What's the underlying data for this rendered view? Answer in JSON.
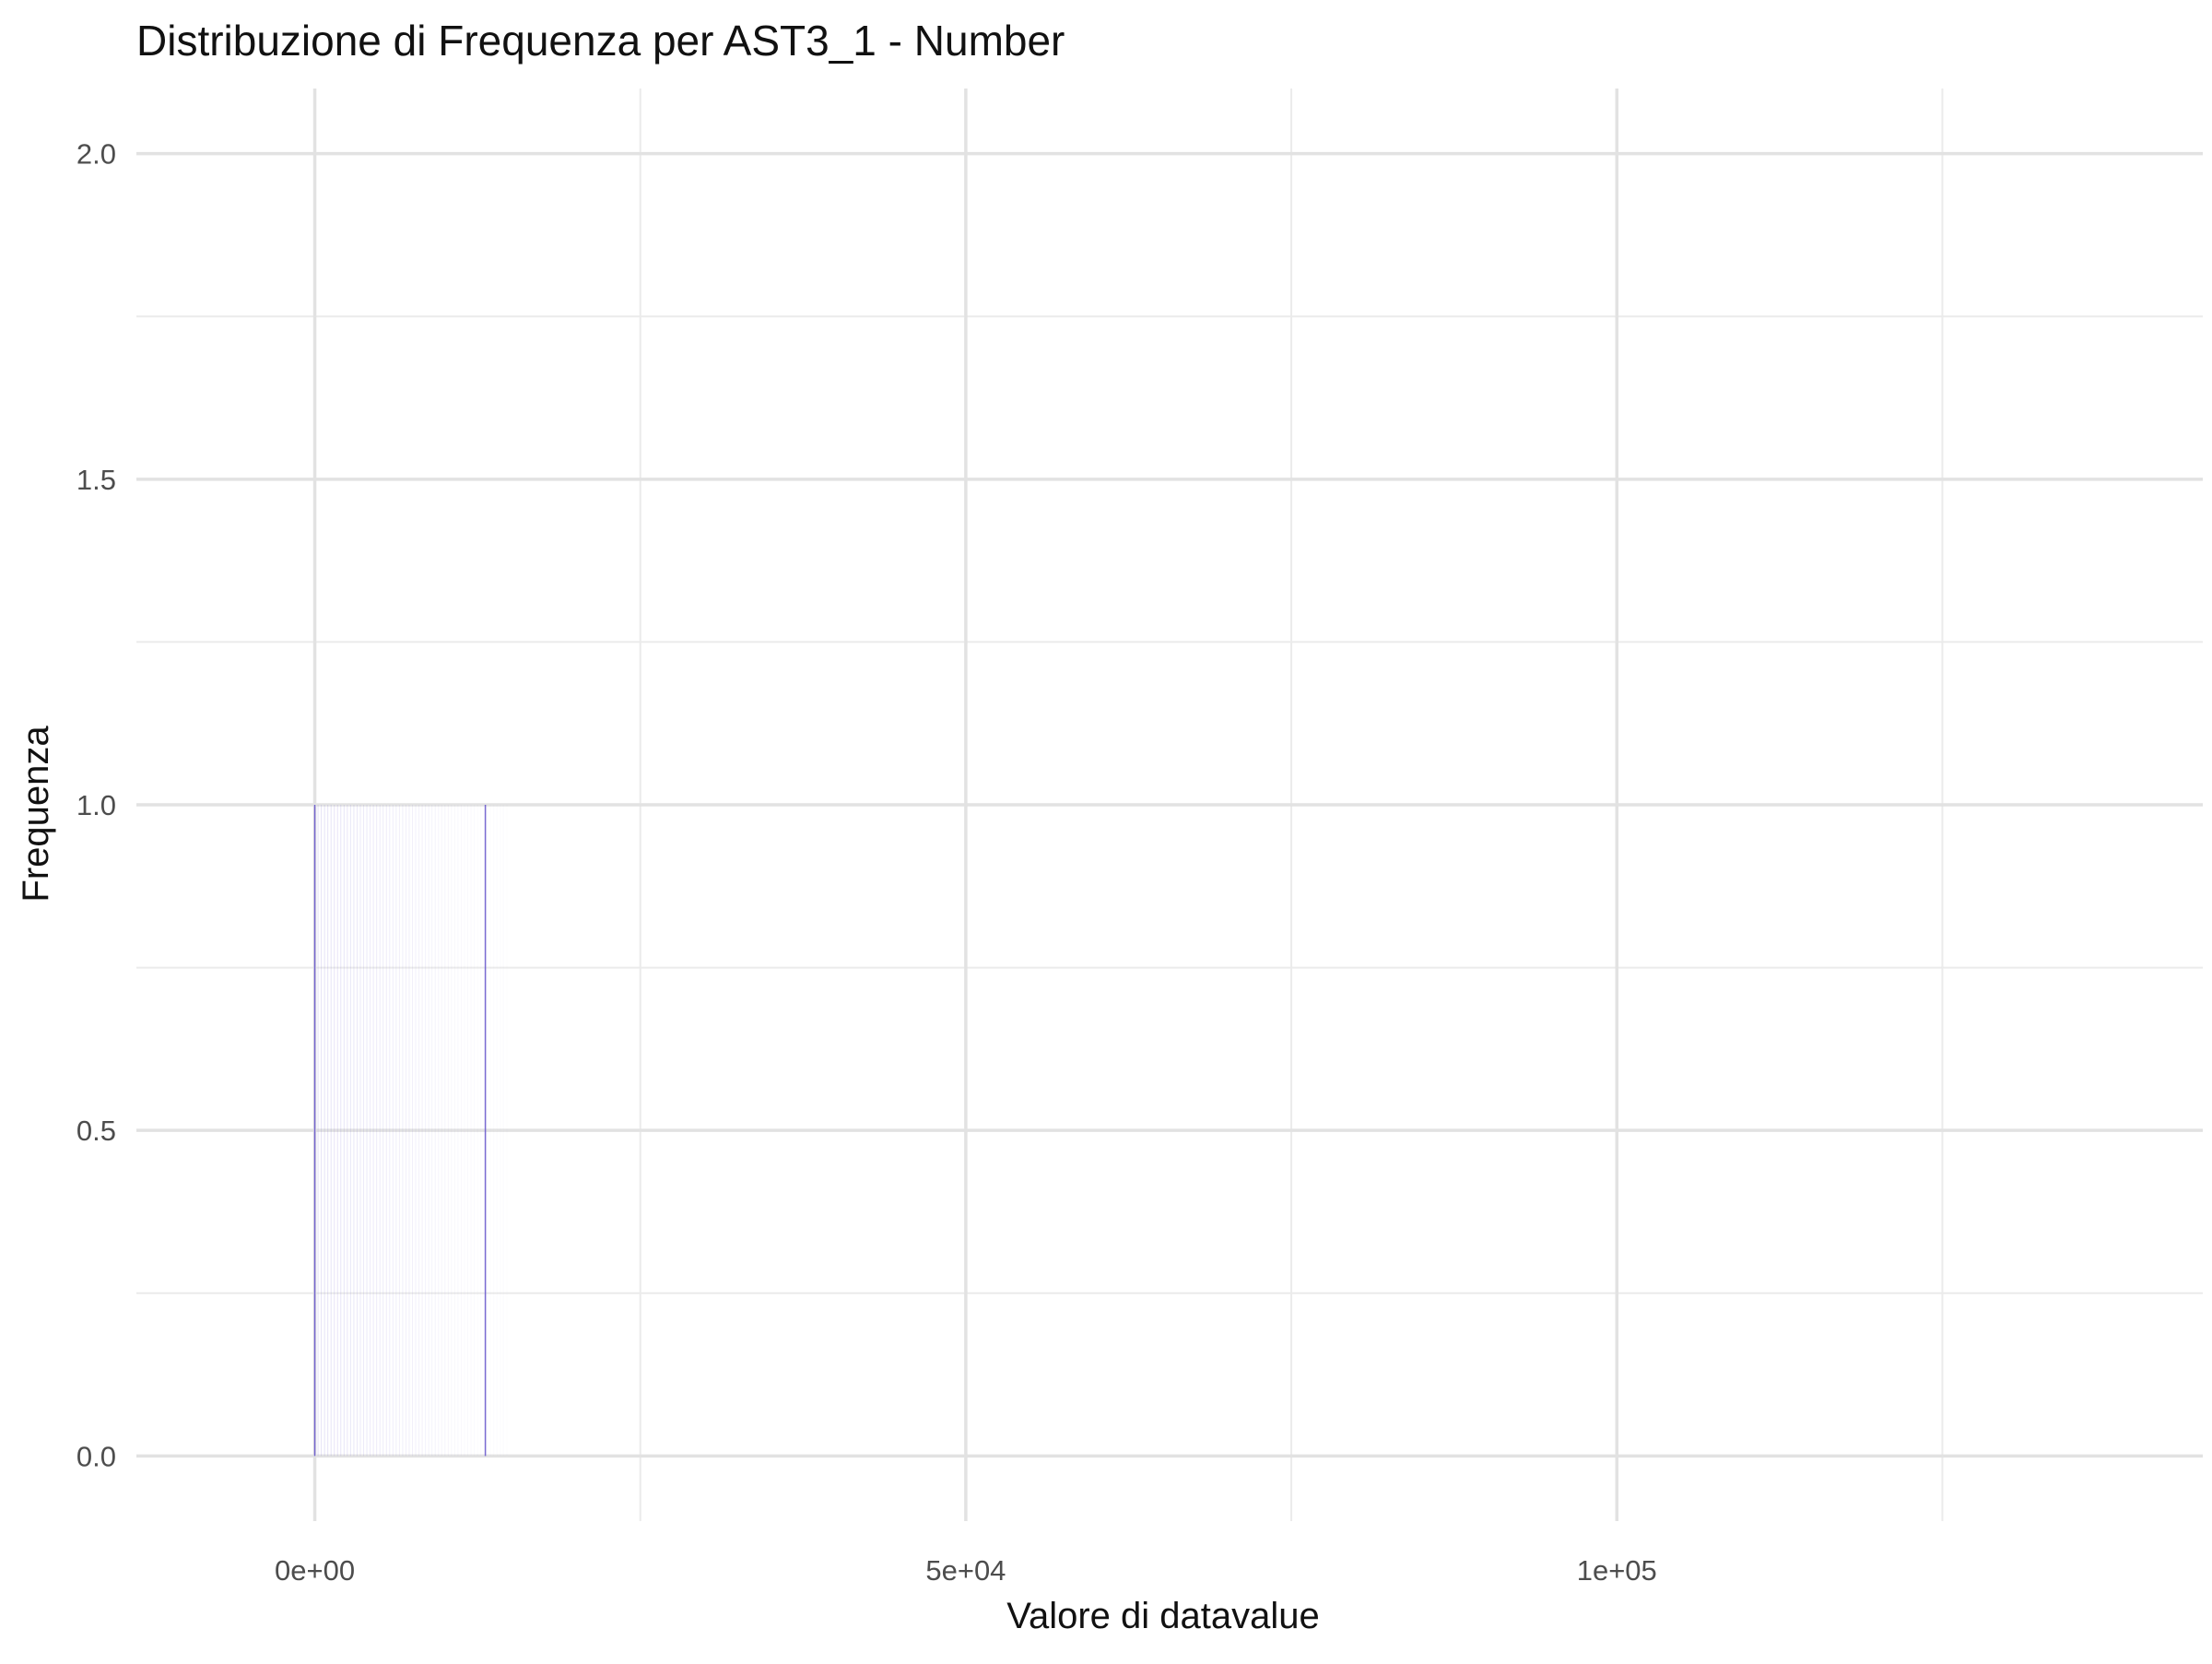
{
  "chart_data": {
    "type": "bar",
    "title": "Distribuzione di Frequenza per AST3_1 - Number",
    "xlabel": "Valore di datavalue",
    "ylabel": "Frequenza",
    "xlim": [
      -13700,
      145000
    ],
    "ylim": [
      -0.1,
      2.1
    ],
    "x_ticks": [
      {
        "value": 0,
        "label": "0e+00"
      },
      {
        "value": 50000,
        "label": "5e+04"
      },
      {
        "value": 100000,
        "label": "1e+05"
      }
    ],
    "x_minor_ticks": [
      25000,
      75000,
      125000
    ],
    "y_ticks": [
      {
        "value": 0,
        "label": "0.0"
      },
      {
        "value": 0.5,
        "label": "0.5"
      },
      {
        "value": 1,
        "label": "1.0"
      },
      {
        "value": 1.5,
        "label": "1.5"
      },
      {
        "value": 2,
        "label": "2.0"
      }
    ],
    "y_minor_ticks": [
      0.25,
      0.75,
      1.25,
      1.75
    ],
    "grid": true,
    "legend": "none",
    "bar_color": "#6a5acd",
    "bins": [
      {
        "x": 0,
        "count": 1
      },
      {
        "x": 13100,
        "count": 1
      }
    ],
    "faint_bins_range": [
      0,
      15000
    ]
  }
}
